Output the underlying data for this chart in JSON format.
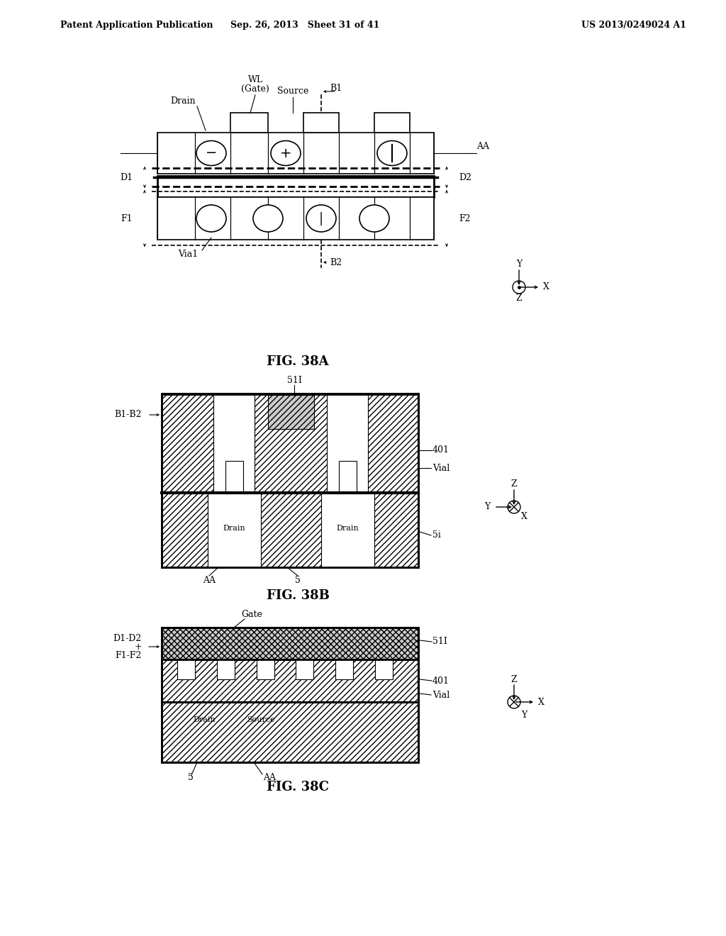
{
  "bg_color": "#ffffff",
  "header_left": "Patent Application Publication",
  "header_mid": "Sep. 26, 2013   Sheet 31 of 41",
  "header_right": "US 2013/0249024 A1",
  "fig38a_caption": "FIG. 38A",
  "fig38b_caption": "FIG. 38B",
  "fig38c_caption": "FIG. 38C"
}
